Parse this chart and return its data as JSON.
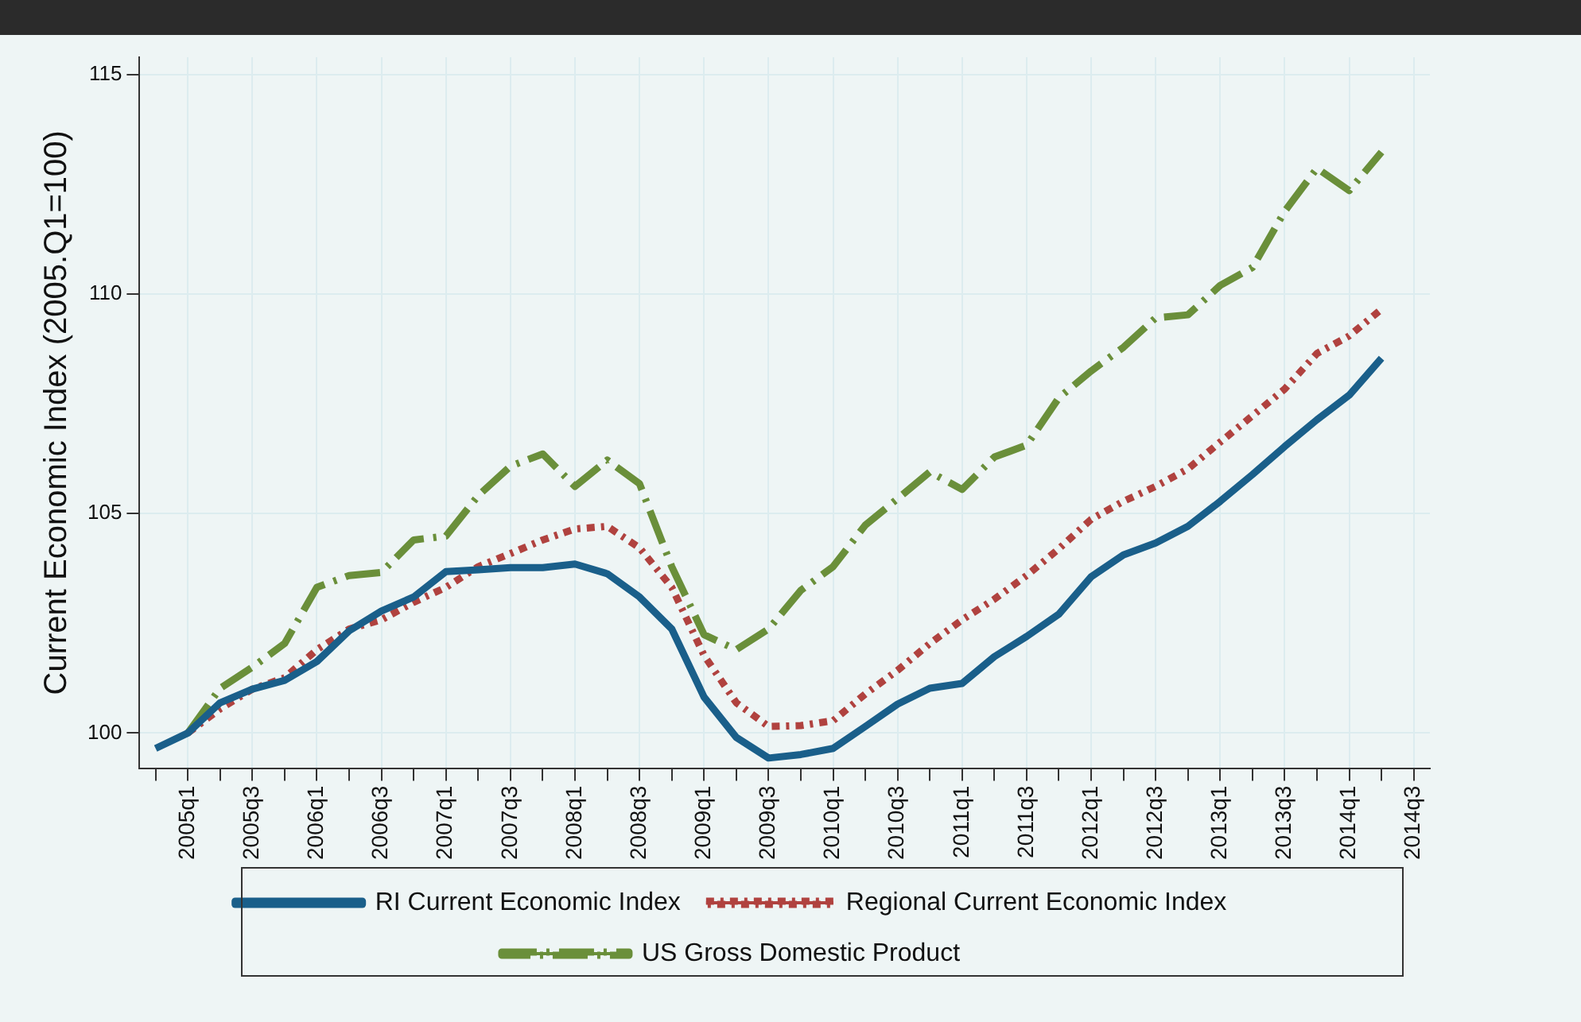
{
  "chart_data": {
    "type": "line",
    "ylabel": "Current Economic Index (2005.Q1=100)",
    "categories": [
      null,
      "2005q1",
      null,
      "2005q3",
      null,
      "2006q1",
      null,
      "2006q3",
      null,
      "2007q1",
      null,
      "2007q3",
      null,
      "2008q1",
      null,
      "2008q3",
      null,
      "2009q1",
      null,
      "2009q3",
      null,
      "2010q1",
      null,
      "2010q3",
      null,
      "2011q1",
      null,
      "2011q3",
      null,
      "2012q1",
      null,
      "2012q3",
      null,
      "2013q1",
      null,
      "2013q3",
      null,
      "2014q1",
      null,
      "2014q3"
    ],
    "series": [
      {
        "name": "RI Current Economic Index",
        "color": "#1a5f8a",
        "line_style": "solid",
        "values": [
          99.65,
          100.0,
          100.69,
          101.0,
          101.2,
          101.63,
          102.33,
          102.78,
          103.1,
          103.68,
          103.72,
          103.77,
          103.77,
          103.85,
          103.63,
          103.1,
          102.37,
          100.82,
          99.9,
          99.43,
          99.51,
          99.65,
          100.15,
          100.66,
          101.02,
          101.13,
          101.74,
          102.2,
          102.71,
          103.56,
          104.06,
          104.33,
          104.71,
          105.28,
          105.89,
          106.53,
          107.14,
          107.7,
          108.54,
          null
        ]
      },
      {
        "name": "Regional Current Economic Index",
        "color": "#b0423f",
        "line_style": "dotted",
        "values": [
          null,
          100.0,
          100.55,
          101.0,
          101.26,
          101.9,
          102.37,
          102.58,
          102.98,
          103.32,
          103.79,
          104.09,
          104.4,
          104.65,
          104.71,
          104.22,
          103.32,
          101.77,
          100.69,
          100.15,
          100.17,
          100.28,
          100.89,
          101.43,
          102.04,
          102.58,
          103.05,
          103.59,
          104.2,
          104.87,
          105.28,
          105.62,
          106.02,
          106.63,
          107.23,
          107.84,
          108.65,
          109.05,
          109.66,
          null
        ]
      },
      {
        "name": "US Gross Domestic Product",
        "color": "#6a8f3a",
        "line_style": "dashed",
        "values": [
          null,
          100.0,
          101.02,
          101.5,
          102.04,
          103.32,
          103.59,
          103.66,
          104.4,
          104.49,
          105.41,
          106.08,
          106.36,
          105.62,
          106.22,
          105.68,
          103.79,
          102.24,
          101.9,
          102.37,
          103.25,
          103.79,
          104.74,
          105.34,
          105.95,
          105.55,
          106.29,
          106.56,
          107.64,
          108.25,
          108.79,
          109.46,
          109.53,
          110.2,
          110.61,
          111.89,
          112.87,
          112.36,
          113.24,
          null
        ]
      }
    ],
    "ylim": [
      99.2,
      115.4
    ],
    "yticks": [
      100,
      105,
      110,
      115
    ],
    "grid": true,
    "legend": "bottom",
    "marker": "none"
  }
}
